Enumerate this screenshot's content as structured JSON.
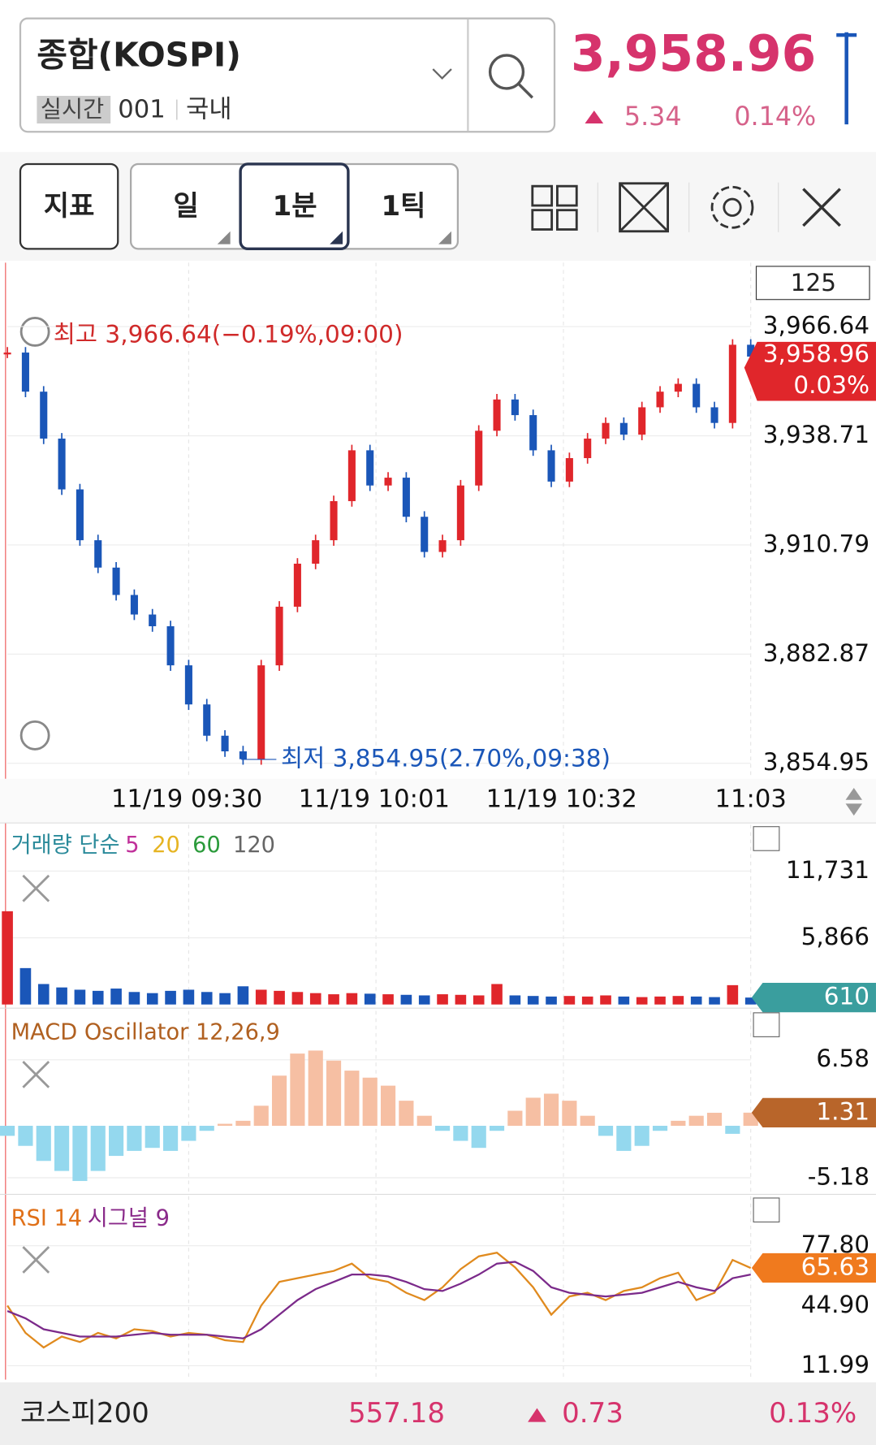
{
  "header": {
    "title": "종합(KOSPI)",
    "tag": "실시간",
    "code": "001",
    "market": "국내",
    "price": "3,958.96",
    "change": "5.34",
    "change_pct": "0.14%"
  },
  "toolbar": {
    "indicator": "지표",
    "tabs": [
      "일",
      "1분",
      "1틱"
    ],
    "count": "125"
  },
  "chart_data": [
    {
      "type": "candlestick",
      "up_color": "#e0262b",
      "down_color": "#1a56b8",
      "values": [
        3960,
        3950,
        3938,
        3925,
        3912,
        3905,
        3898,
        3893,
        3890,
        3880,
        3870,
        3862,
        3858,
        3856,
        3880,
        3895,
        3906,
        3912,
        3922,
        3935,
        3926,
        3928,
        3918,
        3909,
        3912,
        3926,
        3940,
        3948,
        3944,
        3935,
        3927,
        3933,
        3938,
        3942,
        3939,
        3946,
        3950,
        3952,
        3946,
        3942,
        3962,
        3958.96
      ],
      "ylim": [
        3851,
        3983
      ],
      "yticks": [
        {
          "value": 3966.64,
          "label": "3,966.64"
        },
        {
          "value": 3938.71,
          "label": "3,938.71"
        },
        {
          "value": 3910.79,
          "label": "3,910.79"
        },
        {
          "value": 3882.87,
          "label": "3,882.87"
        },
        {
          "value": 3854.95,
          "label": "3,854.95"
        }
      ],
      "xticks": [
        "11/19 09:30",
        "11/19 10:01",
        "11/19 10:32",
        "11:03"
      ],
      "grid": true,
      "high_label": "최고 3,966.64(−0.19%,09:00)",
      "low_label": "최저 3,854.95(2.70%,09:38)",
      "last_label": "3,958.96",
      "last_change": "0.03%"
    },
    {
      "type": "volume",
      "up_color": "#e0262b",
      "down_color": "#1a56b8",
      "title": "거래량 단순",
      "ma_labels": [
        {
          "name": "5",
          "color": "#c0309a"
        },
        {
          "name": "20",
          "color": "#e6b422"
        },
        {
          "name": "60",
          "color": "#2a9a3a"
        },
        {
          "name": "120",
          "color": "#666666"
        }
      ],
      "values": [
        8200,
        3200,
        1800,
        1500,
        1300,
        1200,
        1400,
        1100,
        1000,
        1200,
        1300,
        1100,
        1000,
        1600,
        1300,
        1200,
        1100,
        1000,
        900,
        1000,
        950,
        900,
        850,
        800,
        900,
        850,
        800,
        1800,
        800,
        750,
        700,
        750,
        700,
        800,
        700,
        650,
        700,
        750,
        700,
        650,
        1700,
        610
      ],
      "ylim": [
        0,
        15800
      ],
      "yticks": [
        {
          "value": 11731,
          "label": "11,731"
        },
        {
          "value": 5866,
          "label": "5,866"
        }
      ],
      "last_label": "610",
      "badge_color": "#3a9e9e"
    },
    {
      "type": "histogram",
      "title": "MACD Oscillator 12,26,9",
      "positive_color": "#f6bfa3",
      "negative_color": "#94d8ee",
      "values": [
        -1,
        -2,
        -3.5,
        -4.5,
        -5.5,
        -4.5,
        -3,
        -2.5,
        -2.2,
        -2.5,
        -1.5,
        -0.5,
        0.2,
        0.5,
        2,
        5,
        7.2,
        7.5,
        6.5,
        5.5,
        4.8,
        4,
        2.5,
        1,
        -0.5,
        -1.5,
        -2.2,
        -0.5,
        1.5,
        2.8,
        3.2,
        2.5,
        1,
        -1,
        -2.5,
        -2,
        -0.5,
        0.5,
        1,
        1.3,
        -0.8,
        1.31
      ],
      "ylim": [
        -6.74,
        11.45
      ],
      "yticks": [
        6.58,
        -5.18
      ],
      "last_label": "1.31",
      "badge_color": "#b8652a"
    },
    {
      "type": "line",
      "title": "RSI 14",
      "title2": "시그널 9",
      "series": [
        {
          "name": "RSI",
          "color": "#e08a1e",
          "values": [
            45,
            30,
            22,
            28,
            25,
            30,
            27,
            32,
            31,
            28,
            30,
            29,
            26,
            25,
            45,
            58,
            60,
            62,
            64,
            68,
            60,
            58,
            52,
            48,
            55,
            65,
            72,
            74,
            66,
            55,
            40,
            50,
            52,
            48,
            53,
            55,
            60,
            63,
            48,
            52,
            70,
            65.63
          ]
        },
        {
          "name": "signal",
          "color": "#7b2a8a",
          "values": [
            42,
            38,
            32,
            30,
            28,
            28,
            28,
            29,
            30,
            29,
            29,
            29,
            28,
            27,
            32,
            40,
            48,
            54,
            58,
            62,
            62,
            61,
            58,
            54,
            53,
            57,
            62,
            68,
            69,
            64,
            55,
            52,
            51,
            50,
            51,
            52,
            55,
            58,
            55,
            53,
            60,
            62
          ]
        }
      ],
      "ylim": [
        4.4,
        105
      ],
      "yticks": [
        {
          "value": 77.8,
          "label": "77.80"
        },
        {
          "value": 44.9,
          "label": "44.90"
        },
        11.99
      ],
      "last_label": "65.63",
      "badge_color": "#f07a1e"
    }
  ],
  "footer": {
    "name": "코스피200",
    "price": "557.18",
    "change": "0.73",
    "change_pct": "0.13%"
  }
}
